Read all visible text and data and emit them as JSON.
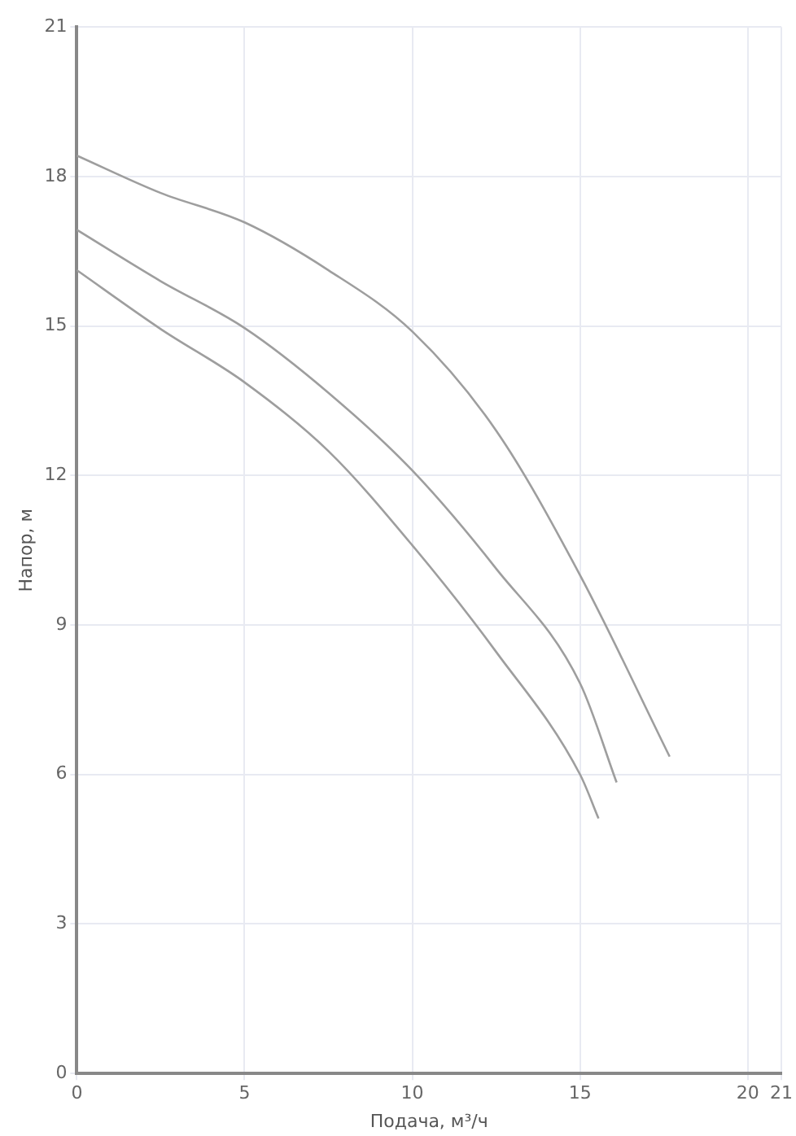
{
  "chart_data": {
    "type": "line",
    "xlabel": "Подача, м³/ч",
    "ylabel": "Напор, м",
    "xlim": [
      0,
      21
    ],
    "xticks": [
      0,
      5,
      10,
      15,
      20,
      21
    ],
    "ylim": [
      0,
      21
    ],
    "yticks": [
      0,
      3,
      6,
      9,
      12,
      15,
      18,
      21
    ],
    "grid": true,
    "marker": "none",
    "line_style": "solid",
    "series": [
      {
        "color": "#9e9e9e",
        "x": [
          0,
          2.5,
          5,
          7.5,
          10,
          12.5,
          15,
          17.67
        ],
        "values": [
          18.42,
          17.67,
          17.08,
          16.12,
          14.89,
          12.9,
          10.0,
          6.36
        ]
      },
      {
        "color": "#9e9e9e",
        "x": [
          0,
          2.5,
          5,
          7.5,
          10,
          12.5,
          15,
          16.09
        ],
        "values": [
          16.93,
          15.9,
          14.96,
          13.66,
          12.1,
          10.13,
          7.83,
          5.84
        ]
      },
      {
        "color": "#9e9e9e",
        "x": [
          0,
          2.5,
          5,
          7.5,
          10,
          12.5,
          15,
          15.55
        ],
        "values": [
          16.12,
          14.94,
          13.87,
          12.49,
          10.6,
          8.46,
          6.0,
          5.12
        ]
      }
    ]
  }
}
